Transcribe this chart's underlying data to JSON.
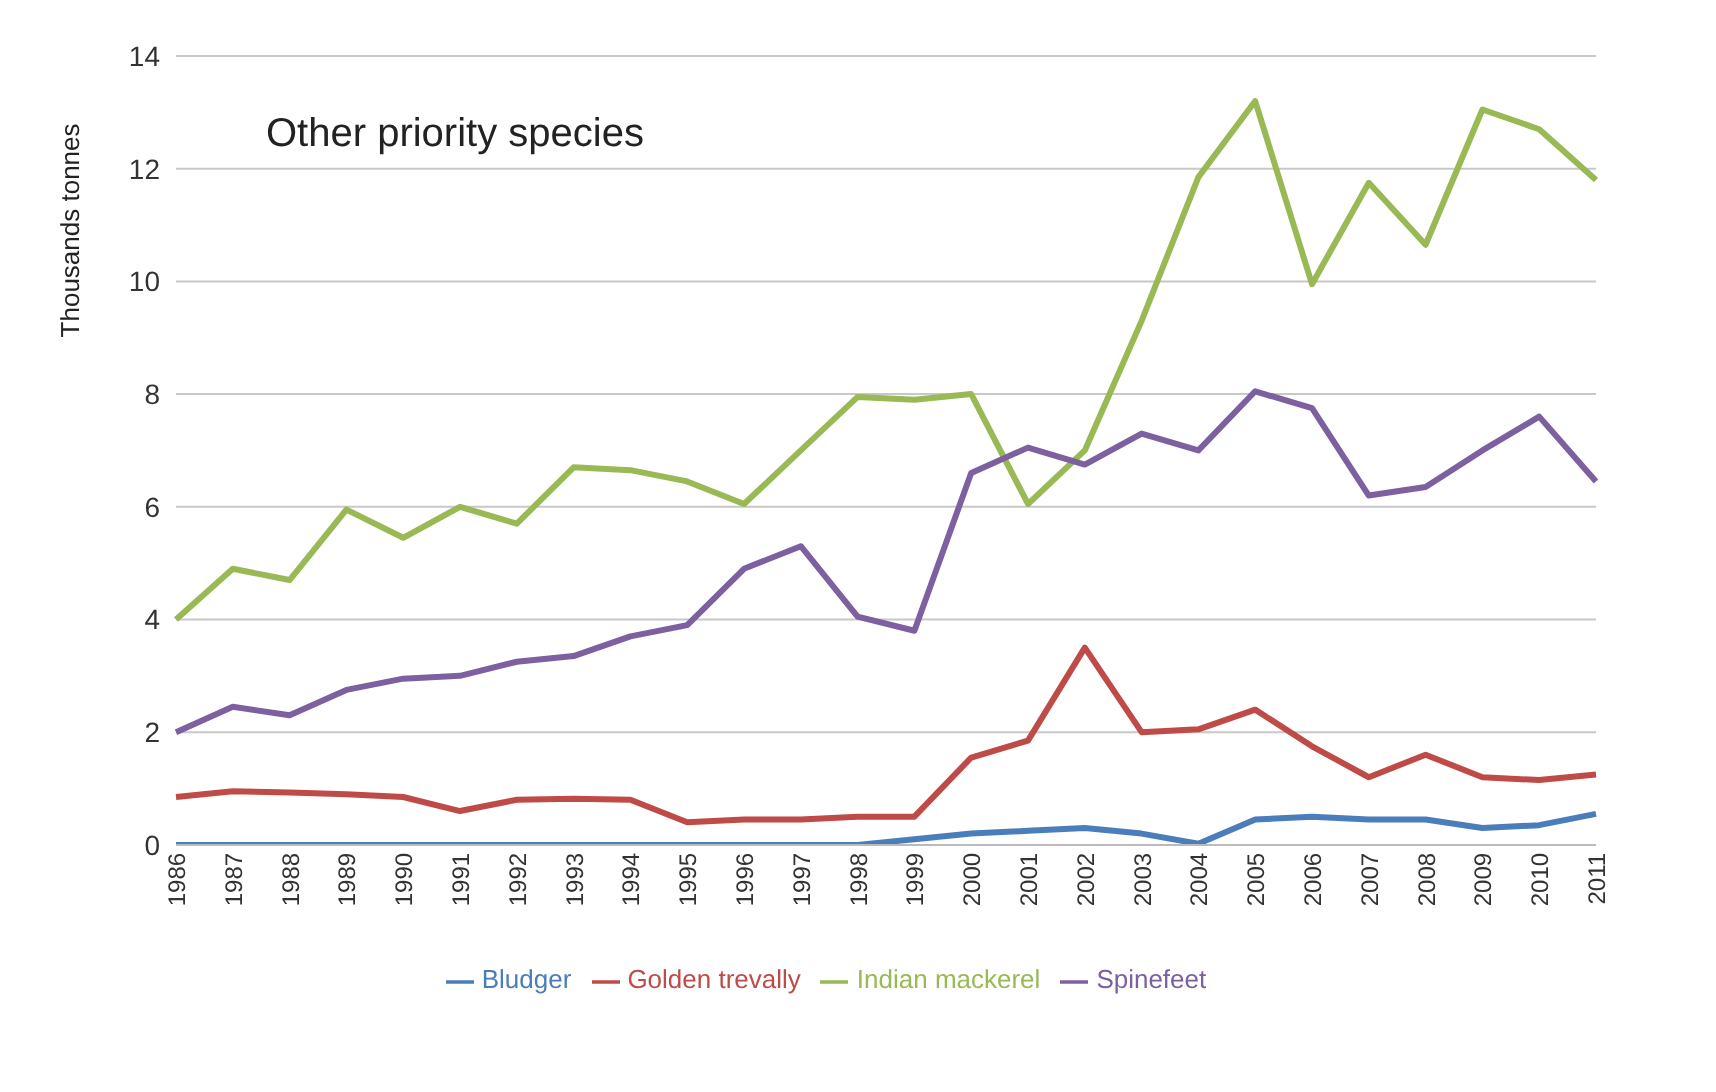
{
  "chart_data": {
    "type": "line",
    "title": "Other priority species",
    "ylabel": "Thousands tonnes",
    "categories": [
      "1986",
      "1987",
      "1988",
      "1989",
      "1990",
      "1991",
      "1992",
      "1993",
      "1994",
      "1995",
      "1996",
      "1997",
      "1998",
      "1999",
      "2000",
      "2001",
      "2002",
      "2003",
      "2004",
      "2005",
      "2006",
      "2007",
      "2008",
      "2009",
      "2010",
      "2011"
    ],
    "series": [
      {
        "name": "Bludger",
        "color": "#4a7ebb",
        "values": [
          0,
          0,
          0,
          0,
          0,
          0,
          0,
          0,
          0,
          0,
          0,
          0,
          0,
          0.1,
          0.2,
          0.25,
          0.3,
          0.2,
          0.02,
          0.45,
          0.5,
          0.45,
          0.45,
          0.3,
          0.35,
          0.55
        ]
      },
      {
        "name": "Golden trevally",
        "color": "#be4b48",
        "values": [
          0.85,
          0.95,
          0.93,
          0.9,
          0.85,
          0.6,
          0.8,
          0.82,
          0.8,
          0.4,
          0.45,
          0.45,
          0.5,
          0.5,
          1.55,
          1.85,
          3.5,
          2.0,
          2.05,
          2.4,
          1.75,
          1.2,
          1.6,
          1.2,
          1.15,
          1.25
        ]
      },
      {
        "name": "Indian mackerel",
        "color": "#98b954",
        "values": [
          4.0,
          4.9,
          4.7,
          5.95,
          5.45,
          6.0,
          5.7,
          6.7,
          6.65,
          6.45,
          6.05,
          7.0,
          7.95,
          7.9,
          8.0,
          6.05,
          7.0,
          9.3,
          11.85,
          13.2,
          9.95,
          11.75,
          10.65,
          13.05,
          12.7,
          11.8
        ]
      },
      {
        "name": "Spinefeet",
        "color": "#7d60a0",
        "values": [
          2.0,
          2.45,
          2.3,
          2.75,
          2.95,
          3.0,
          3.25,
          3.35,
          3.7,
          3.9,
          4.9,
          5.3,
          4.05,
          3.8,
          6.6,
          7.05,
          6.75,
          7.3,
          7.0,
          8.05,
          7.75,
          6.2,
          6.35,
          7.0,
          7.6,
          6.45
        ]
      }
    ],
    "ylim": [
      0,
      14
    ],
    "yticks": [
      0,
      2,
      4,
      6,
      8,
      10,
      12,
      14
    ],
    "grid": "y",
    "legend": "bottom",
    "marker": "none",
    "line_style": "solid"
  }
}
